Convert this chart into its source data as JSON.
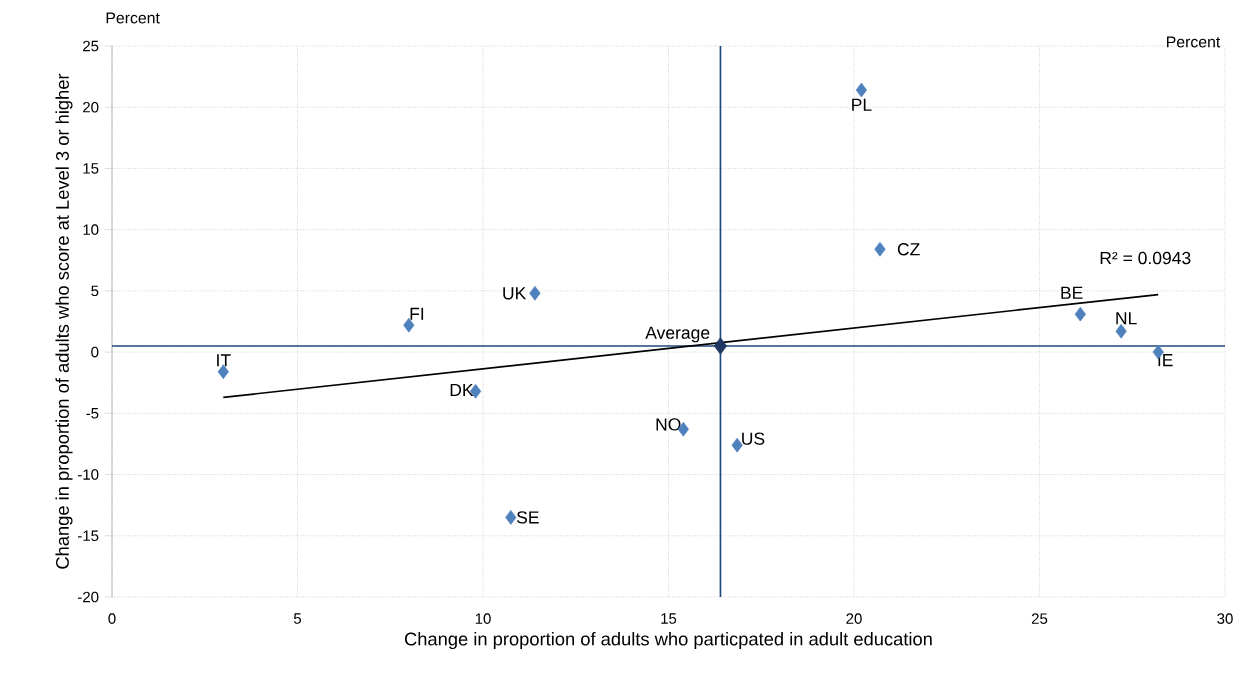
{
  "chart_data": {
    "type": "scatter",
    "xlabel": "Change in proportion of adults who particpated in adult education",
    "ylabel": "Change in proportion of adults who score at Level 3 or higher",
    "xlim": [
      0,
      30
    ],
    "ylim": [
      -20,
      25
    ],
    "xticks": [
      0,
      5,
      10,
      15,
      20,
      25,
      30
    ],
    "yticks": [
      -20,
      -15,
      -10,
      -5,
      0,
      5,
      10,
      15,
      20,
      25
    ],
    "grid": true,
    "marker": "diamond",
    "series": [
      {
        "color": "#4f81bd",
        "x": [
          3.0,
          8.0,
          11.4,
          9.8,
          15.4,
          10.75,
          16.85,
          20.2,
          20.7,
          26.1,
          27.2,
          28.2
        ],
        "values": [
          -1.6,
          2.2,
          4.8,
          -3.2,
          -6.3,
          -13.5,
          -7.6,
          21.4,
          8.4,
          3.1,
          1.7,
          0.0
        ]
      },
      {
        "color": "#1f3864",
        "x": [
          16.4
        ],
        "values": [
          0.5
        ]
      },
      {
        "type": "line",
        "color": "#000000",
        "marker": "none",
        "x": [
          3.0,
          28.2
        ],
        "values": [
          -3.7,
          4.7
        ]
      }
    ],
    "ref_lines": [
      {
        "axis": "x",
        "value": 16.4,
        "color": "#1f497d"
      },
      {
        "axis": "y",
        "value": 0.5,
        "color": "#1f497d"
      }
    ],
    "annotations": [
      {
        "text": "IT",
        "x": 3.0,
        "y": -1.6
      },
      {
        "text": "FI",
        "x": 8.0,
        "y": 2.2
      },
      {
        "text": "UK",
        "x": 11.4,
        "y": 4.8
      },
      {
        "text": "DK",
        "x": 9.8,
        "y": -3.2
      },
      {
        "text": "NO",
        "x": 15.4,
        "y": -6.3
      },
      {
        "text": "SE",
        "x": 10.75,
        "y": -13.5
      },
      {
        "text": "Average",
        "x": 16.4,
        "y": 0.5
      },
      {
        "text": "US",
        "x": 16.85,
        "y": -7.6
      },
      {
        "text": "PL",
        "x": 20.2,
        "y": 21.4
      },
      {
        "text": "CZ",
        "x": 20.7,
        "y": 8.4
      },
      {
        "text": "BE",
        "x": 26.1,
        "y": 3.1
      },
      {
        "text": "NL",
        "x": 27.2,
        "y": 1.7
      },
      {
        "text": "IE",
        "x": 28.2,
        "y": 0.0
      },
      {
        "text": "R² = 0.0943",
        "x": 28.2,
        "y": 4.7
      },
      "Percent",
      "Percent"
    ]
  }
}
